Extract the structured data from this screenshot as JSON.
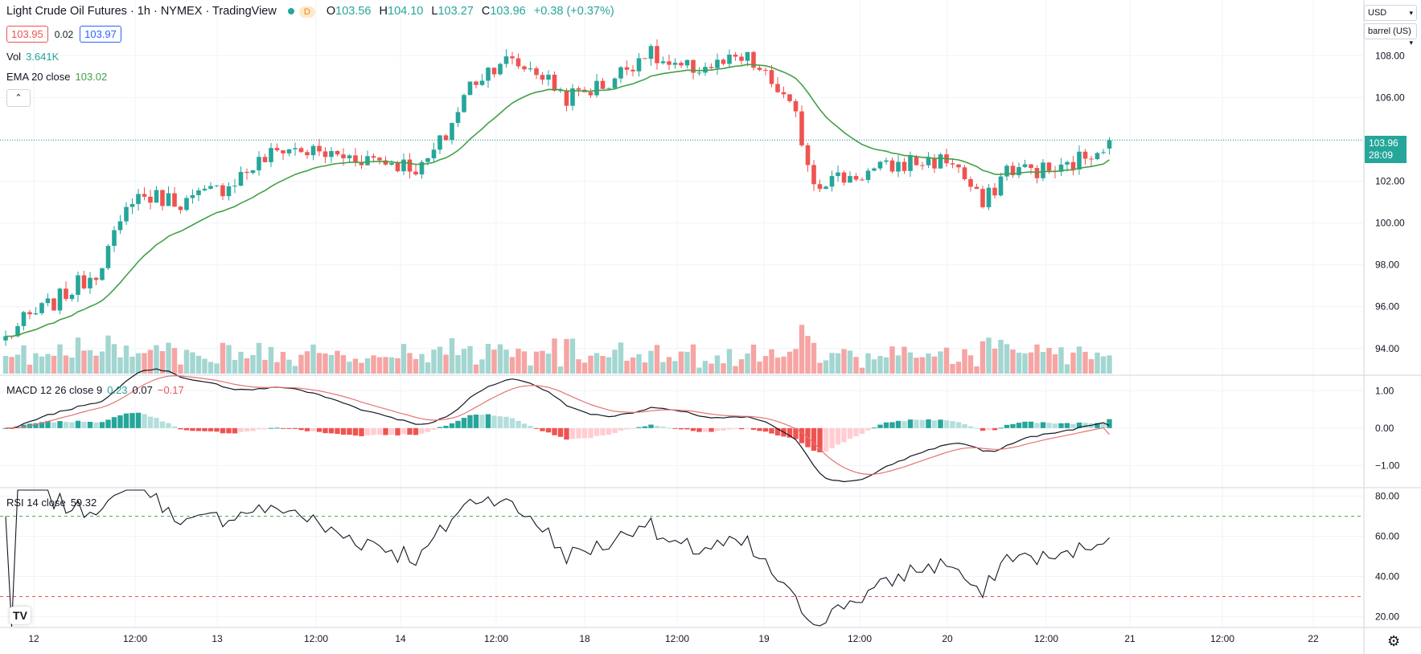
{
  "header": {
    "symbol": "Light Crude Oil Futures",
    "interval": "1h",
    "exchange": "NYMEX",
    "source": "TradingView",
    "badge": "D",
    "ohlc": [
      {
        "label": "O",
        "value": "103.56"
      },
      {
        "label": "H",
        "value": "104.10"
      },
      {
        "label": "L",
        "value": "103.27"
      },
      {
        "label": "C",
        "value": "103.96"
      }
    ],
    "change": "+0.38 (+0.37%)"
  },
  "bid_ask": {
    "bid": "103.95",
    "spread": "0.02",
    "ask": "103.97"
  },
  "volume": {
    "label": "Vol",
    "value": "3.641K"
  },
  "ema": {
    "label": "EMA 20 close",
    "value": "103.02"
  },
  "macd_legend": {
    "label": "MACD 12 26 close 9",
    "hist": "0.23",
    "macd": "0.07",
    "signal": "−0.17"
  },
  "rsi_legend": {
    "label": "RSI 14 close",
    "value": "59.32"
  },
  "scale_controls": {
    "currency": "USD",
    "unit": "barrel (US)"
  },
  "last_price": {
    "price": "103.96",
    "countdown": "28:09"
  },
  "colors": {
    "up": "#26a69a",
    "down": "#ef5350",
    "ema": "#43a047",
    "volume_up": "#a3d6d0",
    "volume_down": "#f5a5a3",
    "macd_line": "#131722",
    "signal_line": "#e57373",
    "rsi_line": "#131722",
    "grid": "#f0f3fa"
  },
  "icons": {
    "logo": "tradingview-logo-icon",
    "settings": "gear-icon",
    "collapse": "chevron-up-icon"
  },
  "logo_text": "TV",
  "chart_data": {
    "type": "candlestick",
    "title": "Light Crude Oil Futures, 1h, NYMEX",
    "ylabel": "USD per barrel",
    "x_tick_labels": [
      "12",
      "12:00",
      "13",
      "12:00",
      "14",
      "12:00",
      "18",
      "12:00",
      "19",
      "12:00",
      "20",
      "12:00",
      "21",
      "12:00",
      "22"
    ],
    "price_axis": {
      "ticks": [
        "94.00",
        "96.00",
        "98.00",
        "100.00",
        "102.00",
        "104.00",
        "106.00",
        "108.00"
      ],
      "ylim": [
        92.8,
        110.2
      ]
    },
    "price_keypoints": [
      [
        0,
        94.5
      ],
      [
        3,
        95.3
      ],
      [
        8,
        96.2
      ],
      [
        15,
        97.7
      ],
      [
        19,
        99.8
      ],
      [
        21,
        101.3
      ],
      [
        26,
        101.2
      ],
      [
        30,
        101.0
      ],
      [
        36,
        101.7
      ],
      [
        42,
        102.9
      ],
      [
        46,
        103.6
      ],
      [
        55,
        103.2
      ],
      [
        61,
        103.1
      ],
      [
        69,
        102.6
      ],
      [
        73,
        104.2
      ],
      [
        77,
        106.6
      ],
      [
        82,
        107.8
      ],
      [
        88,
        107.3
      ],
      [
        93,
        106.0
      ],
      [
        100,
        106.7
      ],
      [
        106,
        108.2
      ],
      [
        111,
        107.3
      ],
      [
        117,
        107.5
      ],
      [
        123,
        107.8
      ],
      [
        128,
        106.4
      ],
      [
        131,
        105.0
      ],
      [
        134,
        102.0
      ],
      [
        140,
        102.2
      ],
      [
        150,
        102.9
      ],
      [
        157,
        103.0
      ],
      [
        162,
        100.8
      ],
      [
        166,
        102.6
      ],
      [
        175,
        102.5
      ],
      [
        181,
        103.6
      ],
      [
        183,
        103.96
      ]
    ],
    "candles_total": 184,
    "ema20_close": 103.02,
    "volume_axis": {
      "max_label": "",
      "note": "volume bars, peak about 9K"
    },
    "macd": {
      "fast": 12,
      "slow": 26,
      "signal": 9,
      "axis_ticks": [
        "1.00",
        "0.00",
        "−1.00"
      ],
      "ylim": [
        -1.55,
        1.35
      ],
      "last": {
        "histogram": 0.23,
        "macd": 0.07,
        "signal": -0.17
      }
    },
    "rsi": {
      "length": 14,
      "axis_ticks": [
        "20.00",
        "40.00",
        "60.00",
        "80.00"
      ],
      "ylim": [
        15,
        83
      ],
      "bands": [
        30,
        70
      ],
      "last": 59.32
    }
  }
}
